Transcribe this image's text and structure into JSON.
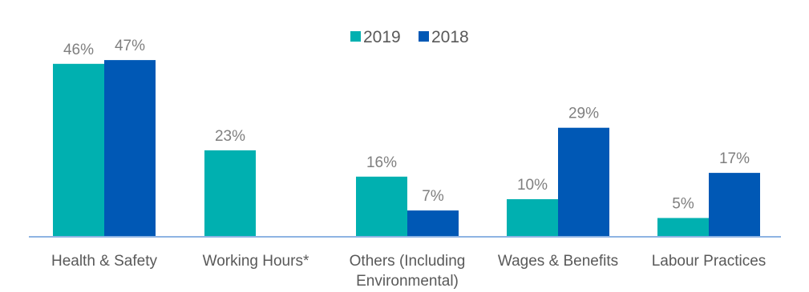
{
  "chart_data": {
    "type": "bar",
    "categories": [
      [
        "Health & Safety"
      ],
      [
        "Working Hours*"
      ],
      [
        "Others (Including",
        "Environmental)"
      ],
      [
        "Wages & Benefits"
      ],
      [
        "Labour Practices"
      ]
    ],
    "series": [
      {
        "name": "2019",
        "color": "#00b0b0",
        "values": [
          46,
          23,
          16,
          10,
          5
        ],
        "labels": [
          "46%",
          "23%",
          "16%",
          "10%",
          "5%"
        ]
      },
      {
        "name": "2018",
        "color": "#0058b5",
        "values": [
          47,
          null,
          7,
          29,
          17
        ],
        "labels": [
          "47%",
          "",
          "7%",
          "29%",
          "17%"
        ]
      }
    ],
    "ylim": [
      0,
      50
    ],
    "legend_position": "top-center",
    "grid": false,
    "axis_color": "#8eb4e3"
  }
}
